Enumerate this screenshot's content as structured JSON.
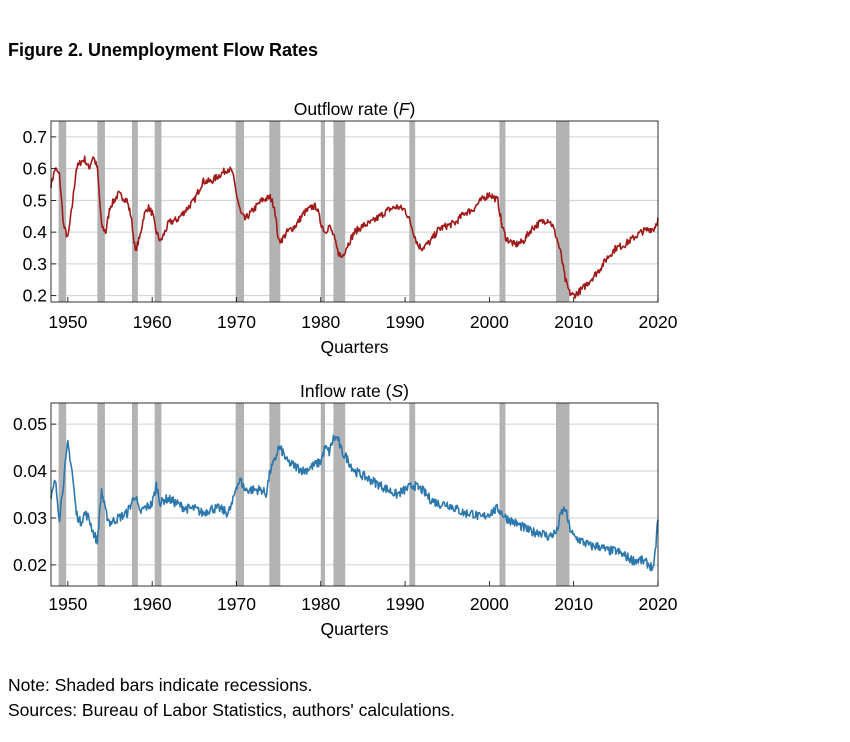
{
  "figure": {
    "title": "Figure 2. Unemployment Flow Rates",
    "note": "Note: Shaded bars indicate recessions.",
    "sources": "Sources: Bureau of Labor Statistics, authors' calculations."
  },
  "colors": {
    "outflow": "#a11a1a",
    "inflow": "#2c78ad",
    "recession": "#b3b3b3",
    "grid": "#d0d0d0"
  },
  "recessions": [
    [
      1948.9,
      1949.8
    ],
    [
      1953.5,
      1954.4
    ],
    [
      1957.6,
      1958.3
    ],
    [
      1960.3,
      1961.1
    ],
    [
      1969.9,
      1970.9
    ],
    [
      1973.9,
      1975.2
    ],
    [
      1980.0,
      1980.5
    ],
    [
      1981.5,
      1982.9
    ],
    [
      1990.5,
      1991.2
    ],
    [
      2001.2,
      2001.9
    ],
    [
      2007.9,
      2009.5
    ]
  ],
  "chart_data": [
    {
      "type": "line",
      "title": "Outflow rate (F)",
      "title_main": "Outflow rate (",
      "title_var": "F",
      "title_end": ")",
      "xlabel": "Quarters",
      "xlim": [
        1948,
        2020
      ],
      "ylim": [
        0.18,
        0.75
      ],
      "xticks": [
        1950,
        1960,
        1970,
        1980,
        1990,
        2000,
        2010,
        2020
      ],
      "yticks": [
        0.2,
        0.3,
        0.4,
        0.5,
        0.6,
        0.7
      ],
      "ytick_labels": [
        "0.2",
        "0.3",
        "0.4",
        "0.5",
        "0.6",
        "0.7"
      ],
      "grid": true,
      "series": [
        {
          "name": "Outflow rate (F)",
          "x": [
            1948,
            1948.5,
            1949,
            1949.5,
            1950,
            1950.5,
            1951,
            1951.5,
            1952,
            1952.5,
            1953,
            1953.5,
            1954,
            1954.5,
            1955,
            1955.5,
            1956,
            1956.5,
            1957,
            1957.5,
            1958,
            1958.5,
            1959,
            1959.5,
            1960,
            1960.5,
            1961,
            1961.5,
            1962,
            1963,
            1964,
            1965,
            1966,
            1967,
            1968,
            1969,
            1969.5,
            1970,
            1970.5,
            1971,
            1972,
            1973,
            1974,
            1974.5,
            1975,
            1975.5,
            1976,
            1977,
            1978,
            1979,
            1979.5,
            1980,
            1980.5,
            1981,
            1981.5,
            1982,
            1982.5,
            1983,
            1984,
            1985,
            1986,
            1987,
            1988,
            1989,
            1990,
            1990.5,
            1991,
            1991.5,
            1992,
            1993,
            1994,
            1995,
            1996,
            1997,
            1998,
            1999,
            2000,
            2001,
            2001.5,
            2002,
            2003,
            2004,
            2005,
            2006,
            2007,
            2007.5,
            2008,
            2008.5,
            2009,
            2009.5,
            2010,
            2011,
            2012,
            2013,
            2014,
            2015,
            2016,
            2017,
            2018,
            2019,
            2019.5,
            2020
          ],
          "values": [
            0.55,
            0.6,
            0.58,
            0.42,
            0.38,
            0.48,
            0.6,
            0.62,
            0.63,
            0.6,
            0.64,
            0.6,
            0.42,
            0.4,
            0.48,
            0.5,
            0.52,
            0.51,
            0.5,
            0.45,
            0.34,
            0.38,
            0.45,
            0.48,
            0.46,
            0.4,
            0.37,
            0.4,
            0.43,
            0.44,
            0.47,
            0.5,
            0.56,
            0.56,
            0.58,
            0.6,
            0.59,
            0.52,
            0.46,
            0.44,
            0.47,
            0.5,
            0.51,
            0.48,
            0.37,
            0.38,
            0.4,
            0.42,
            0.46,
            0.48,
            0.48,
            0.43,
            0.4,
            0.42,
            0.39,
            0.34,
            0.32,
            0.35,
            0.4,
            0.42,
            0.43,
            0.45,
            0.47,
            0.48,
            0.47,
            0.44,
            0.4,
            0.36,
            0.35,
            0.37,
            0.41,
            0.42,
            0.43,
            0.46,
            0.47,
            0.5,
            0.52,
            0.5,
            0.42,
            0.38,
            0.36,
            0.37,
            0.41,
            0.43,
            0.44,
            0.42,
            0.38,
            0.33,
            0.25,
            0.21,
            0.2,
            0.22,
            0.25,
            0.28,
            0.32,
            0.35,
            0.36,
            0.38,
            0.4,
            0.41,
            0.41,
            0.44
          ]
        }
      ]
    },
    {
      "type": "line",
      "title": "Inflow rate (S)",
      "title_main": "Inflow rate (",
      "title_var": "S",
      "title_end": ")",
      "xlabel": "Quarters",
      "xlim": [
        1948,
        2020
      ],
      "ylim": [
        0.0155,
        0.0545
      ],
      "xticks": [
        1950,
        1960,
        1970,
        1980,
        1990,
        2000,
        2010,
        2020
      ],
      "yticks": [
        0.02,
        0.03,
        0.04,
        0.05
      ],
      "ytick_labels": [
        "0.02",
        "0.03",
        "0.04",
        "0.05"
      ],
      "grid": true,
      "series": [
        {
          "name": "Inflow rate (S)",
          "x": [
            1948,
            1948.5,
            1949,
            1949.5,
            1950,
            1950.5,
            1951,
            1951.5,
            1952,
            1952.5,
            1953,
            1953.5,
            1954,
            1954.5,
            1955,
            1956,
            1957,
            1957.5,
            1958,
            1958.5,
            1959,
            1960,
            1960.5,
            1961,
            1961.5,
            1962,
            1963,
            1964,
            1965,
            1966,
            1967,
            1968,
            1969,
            1969.5,
            1970,
            1970.5,
            1971,
            1972,
            1973,
            1973.5,
            1974,
            1974.5,
            1975,
            1975.5,
            1976,
            1977,
            1978,
            1979,
            1980,
            1980.5,
            1981,
            1981.5,
            1982,
            1982.5,
            1983,
            1984,
            1985,
            1986,
            1987,
            1988,
            1989,
            1990,
            1991,
            1992,
            1993,
            1994,
            1995,
            1996,
            1997,
            1998,
            1999,
            2000,
            2001,
            2001.5,
            2002,
            2003,
            2004,
            2005,
            2006,
            2007,
            2008,
            2008.5,
            2009,
            2009.5,
            2010,
            2011,
            2012,
            2013,
            2014,
            2015,
            2016,
            2017,
            2018,
            2019,
            2019.5,
            2020
          ],
          "values": [
            0.034,
            0.038,
            0.03,
            0.038,
            0.046,
            0.04,
            0.031,
            0.029,
            0.031,
            0.03,
            0.027,
            0.025,
            0.036,
            0.031,
            0.029,
            0.03,
            0.031,
            0.033,
            0.035,
            0.031,
            0.032,
            0.033,
            0.037,
            0.033,
            0.034,
            0.034,
            0.033,
            0.032,
            0.032,
            0.031,
            0.032,
            0.032,
            0.031,
            0.033,
            0.037,
            0.038,
            0.036,
            0.036,
            0.036,
            0.035,
            0.04,
            0.042,
            0.045,
            0.044,
            0.042,
            0.041,
            0.04,
            0.041,
            0.042,
            0.045,
            0.044,
            0.047,
            0.047,
            0.044,
            0.043,
            0.04,
            0.039,
            0.038,
            0.037,
            0.036,
            0.035,
            0.036,
            0.037,
            0.036,
            0.034,
            0.033,
            0.033,
            0.032,
            0.031,
            0.031,
            0.03,
            0.031,
            0.032,
            0.031,
            0.03,
            0.029,
            0.028,
            0.027,
            0.027,
            0.026,
            0.027,
            0.031,
            0.032,
            0.028,
            0.026,
            0.025,
            0.024,
            0.024,
            0.023,
            0.023,
            0.022,
            0.021,
            0.021,
            0.02,
            0.019,
            0.03
          ]
        }
      ]
    }
  ]
}
